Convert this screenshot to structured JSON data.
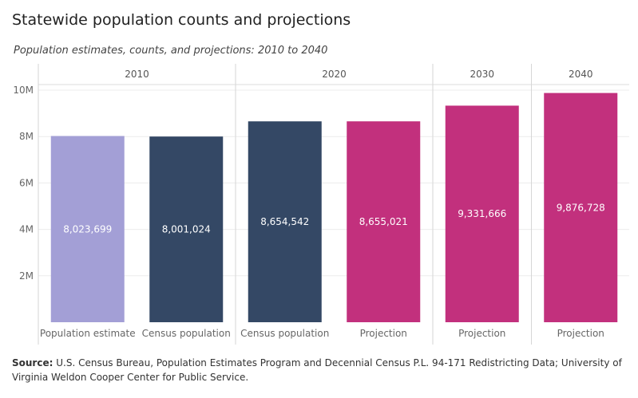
{
  "title": "Statewide population counts and projections",
  "subtitle": "Population estimates, counts, and projections: 2010 to 2040",
  "source_label": "Source:",
  "source_text": "U.S. Census Bureau, Population Estimates Program and Decennial Census P.L. 94-171 Redistricting Data; University of Virginia Weldon Cooper Center for Public Service.",
  "chart_data": {
    "type": "bar",
    "groups": [
      {
        "label": "2010",
        "bars": [
          {
            "category": "Population estimate",
            "value": 8023699,
            "display": "8,023,699",
            "color": "#a39fd6"
          },
          {
            "category": "Census population",
            "value": 8001024,
            "display": "8,001,024",
            "color": "#344865"
          }
        ]
      },
      {
        "label": "2020",
        "bars": [
          {
            "category": "Census population",
            "value": 8654542,
            "display": "8,654,542",
            "color": "#344865"
          },
          {
            "category": "Projection",
            "value": 8655021,
            "display": "8,655,021",
            "color": "#c2307d"
          }
        ]
      },
      {
        "label": "2030",
        "bars": [
          {
            "category": "Projection",
            "value": 9331666,
            "display": "9,331,666",
            "color": "#c2307d"
          }
        ]
      },
      {
        "label": "2040",
        "bars": [
          {
            "category": "Projection",
            "value": 9876728,
            "display": "9,876,728",
            "color": "#c2307d"
          }
        ]
      }
    ],
    "yticks": [
      {
        "value": 2000000,
        "label": "2M"
      },
      {
        "value": 4000000,
        "label": "4M"
      },
      {
        "value": 6000000,
        "label": "6M"
      },
      {
        "value": 8000000,
        "label": "8M"
      },
      {
        "value": 10000000,
        "label": "10M"
      }
    ],
    "ylim": [
      0,
      10500000
    ],
    "grid": true,
    "xlabel": "",
    "ylabel": ""
  }
}
